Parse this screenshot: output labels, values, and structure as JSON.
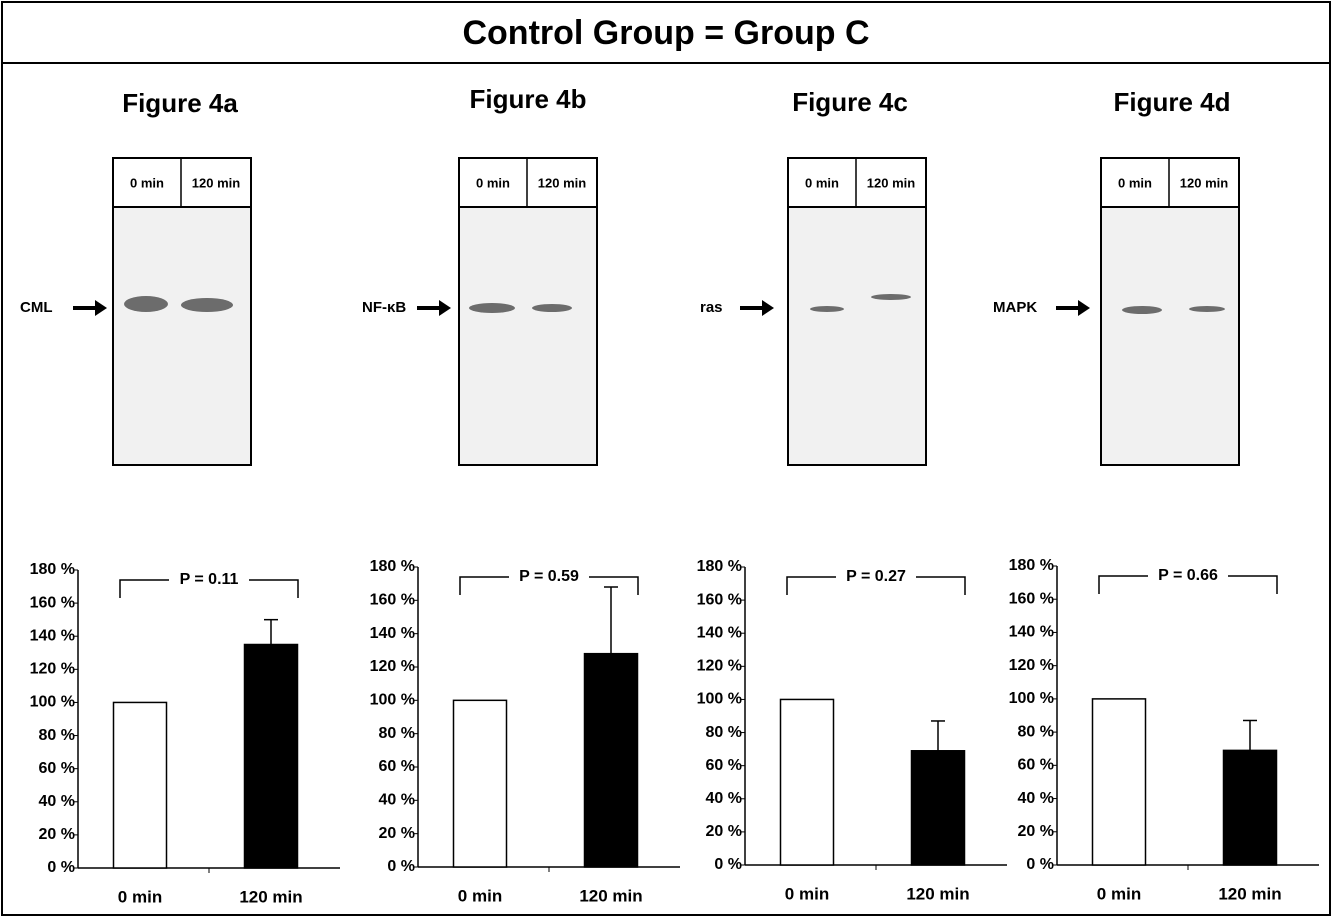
{
  "title": "Control Group = Group C",
  "chart_data": [
    {
      "type": "bar",
      "title": "Figure 4a",
      "band_label": "CML",
      "lanes": [
        "0 min",
        "120 min"
      ],
      "annotation": "P = 0.11",
      "categories": [
        "0 min",
        "120 min"
      ],
      "values": [
        100,
        135
      ],
      "errors": [
        null,
        15
      ],
      "colors": [
        "#ffffff",
        "#000000"
      ],
      "ylim": [
        0,
        180
      ],
      "yticks": [
        {
          "value": 0,
          "label": "0 %"
        },
        {
          "value": 20,
          "label": "20 %"
        },
        {
          "value": 40,
          "label": "40 %"
        },
        {
          "value": 60,
          "label": "60 %"
        },
        {
          "value": 80,
          "label": "80 %"
        },
        {
          "value": 100,
          "label": "100 %"
        },
        {
          "value": 120,
          "label": "120 %"
        },
        {
          "value": 140,
          "label": "140 %"
        },
        {
          "value": 160,
          "label": "160 %"
        },
        {
          "value": 180,
          "label": "180 %"
        }
      ]
    },
    {
      "type": "bar",
      "title": "Figure 4b",
      "band_label": "NF-κB",
      "lanes": [
        "0 min",
        "120 min"
      ],
      "annotation": "P = 0.59",
      "categories": [
        "0 min",
        "120 min"
      ],
      "values": [
        100,
        128
      ],
      "errors": [
        null,
        40
      ],
      "colors": [
        "#ffffff",
        "#000000"
      ],
      "ylim": [
        0,
        180
      ],
      "yticks": [
        {
          "value": 0,
          "label": "0 %"
        },
        {
          "value": 20,
          "label": "20 %"
        },
        {
          "value": 40,
          "label": "40 %"
        },
        {
          "value": 60,
          "label": "60 %"
        },
        {
          "value": 80,
          "label": "80 %"
        },
        {
          "value": 100,
          "label": "100 %"
        },
        {
          "value": 120,
          "label": "120 %"
        },
        {
          "value": 140,
          "label": "140 %"
        },
        {
          "value": 160,
          "label": "160 %"
        },
        {
          "value": 180,
          "label": "180 %"
        }
      ]
    },
    {
      "type": "bar",
      "title": "Figure 4c",
      "band_label": "ras",
      "lanes": [
        "0 min",
        "120 min"
      ],
      "annotation": "P = 0.27",
      "categories": [
        "0 min",
        "120 min"
      ],
      "values": [
        100,
        69
      ],
      "errors": [
        null,
        18
      ],
      "colors": [
        "#ffffff",
        "#000000"
      ],
      "ylim": [
        0,
        180
      ],
      "yticks": [
        {
          "value": 0,
          "label": "0 %"
        },
        {
          "value": 20,
          "label": "20 %"
        },
        {
          "value": 40,
          "label": "40 %"
        },
        {
          "value": 60,
          "label": "60 %"
        },
        {
          "value": 80,
          "label": "80 %"
        },
        {
          "value": 100,
          "label": "100 %"
        },
        {
          "value": 120,
          "label": "120 %"
        },
        {
          "value": 140,
          "label": "140 %"
        },
        {
          "value": 160,
          "label": "160 %"
        },
        {
          "value": 180,
          "label": "180 %"
        }
      ]
    },
    {
      "type": "bar",
      "title": "Figure 4d",
      "band_label": "MAPK",
      "lanes": [
        "0 min",
        "120 min"
      ],
      "annotation": "P = 0.66",
      "categories": [
        "0 min",
        "120 min"
      ],
      "values": [
        100,
        69
      ],
      "errors": [
        null,
        18
      ],
      "colors": [
        "#ffffff",
        "#000000"
      ],
      "ylim": [
        0,
        180
      ],
      "yticks": [
        {
          "value": 0,
          "label": "0 %"
        },
        {
          "value": 20,
          "label": "20 %"
        },
        {
          "value": 40,
          "label": "40 %"
        },
        {
          "value": 60,
          "label": "60 %"
        },
        {
          "value": 80,
          "label": "80 %"
        },
        {
          "value": 100,
          "label": "100 %"
        },
        {
          "value": 120,
          "label": "120 %"
        },
        {
          "value": 140,
          "label": "140 %"
        },
        {
          "value": 160,
          "label": "160 %"
        },
        {
          "value": 180,
          "label": "180 %"
        }
      ]
    }
  ]
}
